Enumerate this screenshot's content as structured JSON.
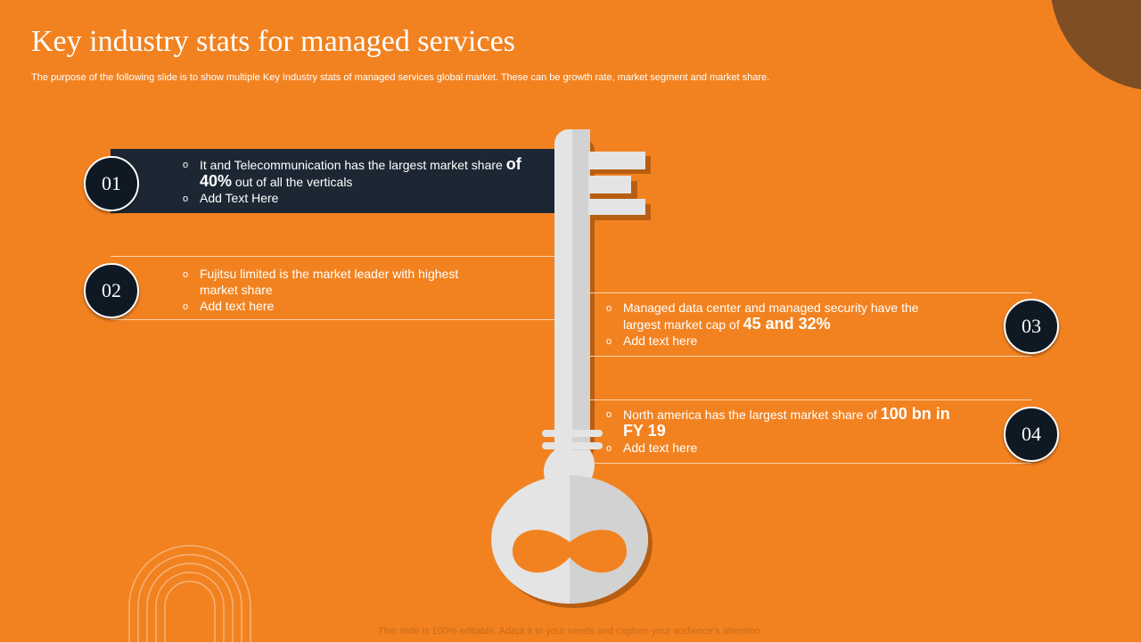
{
  "title": "Key industry stats for managed services",
  "subtitle": "The purpose of the following slide is to show multiple Key Industry stats of managed services global market. These can be growth rate, market segment and market share.",
  "items": [
    {
      "number": "01",
      "bullets": [
        [
          "It and Telecommunication has the largest market share ",
          "of 40%",
          " out of all the verticals"
        ],
        [
          "Add Text Here"
        ]
      ]
    },
    {
      "number": "02",
      "bullets": [
        [
          "Fujitsu limited is the market leader with highest market share"
        ],
        [
          "Add text here"
        ]
      ]
    },
    {
      "number": "03",
      "bullets": [
        [
          "Managed data center and managed security have the largest market cap of ",
          "45 and 32%"
        ],
        [
          "Add text here"
        ]
      ]
    },
    {
      "number": "04",
      "bullets": [
        [
          "North america has the largest market share of ",
          "100 bn in FY 19"
        ],
        [
          "Add text here"
        ]
      ]
    }
  ],
  "footer": "This slide is 100% editable. Adapt it to your needs and capture your audience's attention."
}
